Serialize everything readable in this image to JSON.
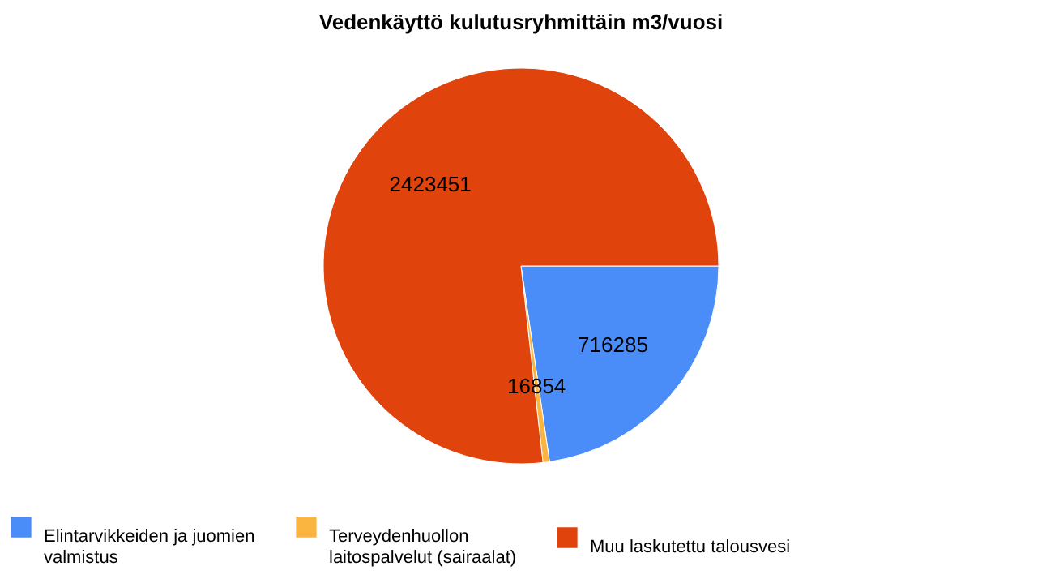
{
  "chart_data": {
    "type": "pie",
    "title": "Vedenkäyttö kulutusryhmittäin m3/vuosi",
    "categories": [
      "Elintarvikkeiden ja juomien valmistus",
      "Terveydenhuollon laitospalvelut (sairaalat)",
      "Muu laskutettu talousvesi"
    ],
    "values": [
      716285,
      16854,
      2423451
    ],
    "colors": [
      "#4a8df8",
      "#f9b53f",
      "#e0430c"
    ],
    "data_labels": true,
    "legend": "bottom"
  }
}
